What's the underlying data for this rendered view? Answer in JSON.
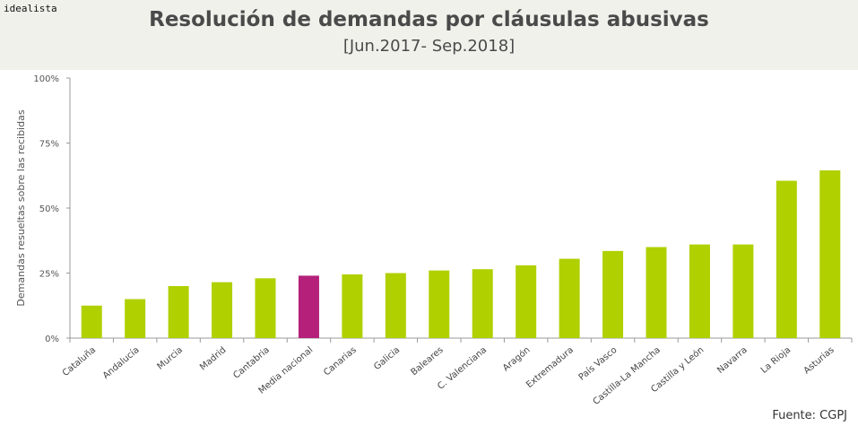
{
  "header": {
    "brand": "idealista",
    "title": "Resolución de demandas por cláusulas abusivas",
    "subtitle": "[Jun.2017- Sep.2018]"
  },
  "footer": {
    "source": "Fuente: CGPJ"
  },
  "colors": {
    "bar": "#b0d000",
    "highlight": "#b5217a",
    "axis": "#9a9a9a",
    "header_bg": "#f1f1ec"
  },
  "chart_data": {
    "type": "bar",
    "title": "Resolución de demandas por cláusulas abusivas",
    "subtitle": "[Jun.2017- Sep.2018]",
    "xlabel": "",
    "ylabel": "Demandas resueltas sobre las recibidas",
    "ylim": [
      0,
      100
    ],
    "yticks": [
      0,
      25,
      50,
      75,
      100
    ],
    "ytick_labels": [
      "0%",
      "25%",
      "50%",
      "75%",
      "100%"
    ],
    "grid": false,
    "highlight_category": "Media nacional",
    "categories": [
      "Cataluña",
      "Andalucía",
      "Murcia",
      "Madrid",
      "Cantabria",
      "Media nacional",
      "Canarias",
      "Galicia",
      "Baleares",
      "C. Valenciana",
      "Aragón",
      "Extremadura",
      "País Vasco",
      "Castilla-La Mancha",
      "Castilla y León",
      "Navarra",
      "La Rioja",
      "Asturias"
    ],
    "values": [
      12.5,
      15,
      20,
      21.5,
      23,
      24,
      24.5,
      25,
      26,
      26.5,
      28,
      30.5,
      33.5,
      35,
      36,
      36,
      60.5,
      64.5
    ]
  }
}
